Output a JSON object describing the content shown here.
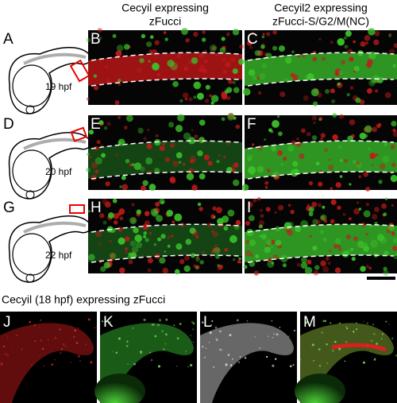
{
  "column_headers": [
    {
      "line1": "Cecyil expressing",
      "line2": "zFucci"
    },
    {
      "line1": "Cecyil2 expressing",
      "line2": "zFucci-S/G2/M(NC)"
    }
  ],
  "rows": [
    {
      "label": "A",
      "stage": "19 hpf",
      "panels": [
        "B",
        "C"
      ]
    },
    {
      "label": "D",
      "stage": "20 hpf",
      "panels": [
        "E",
        "F"
      ]
    },
    {
      "label": "G",
      "stage": "22 hpf",
      "panels": [
        "H",
        "I"
      ]
    }
  ],
  "bottom": {
    "title": "Cecyil (18 hpf) expressing zFucci",
    "panels": [
      "J",
      "K",
      "L",
      "M"
    ]
  }
}
